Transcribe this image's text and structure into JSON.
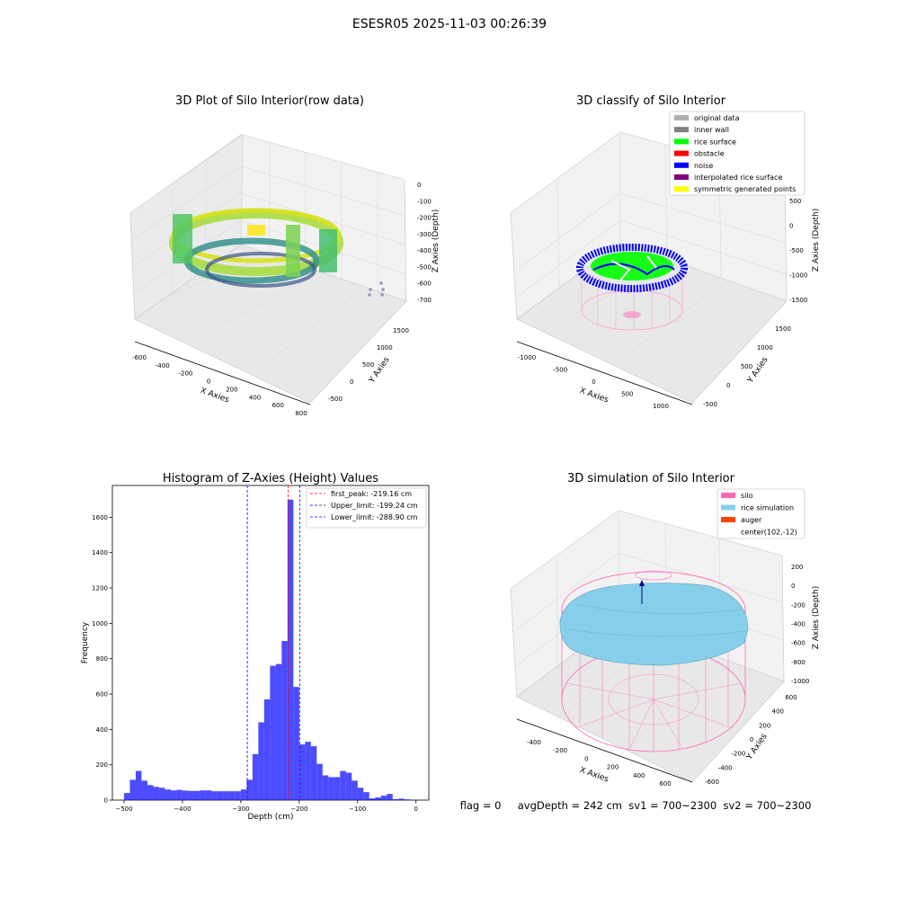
{
  "figure": {
    "title": "ESESR05 2025-11-03 00:26:39",
    "status_line": "flag = 0     avgDepth = 242 cm  sv1 = 700~2300  sv2 = 700~2300"
  },
  "colors": {
    "hist_bar": "#0000ff",
    "first_peak_line": "#ff0000",
    "limit_line": "#0000ff",
    "silo": "#ff69b4",
    "rice": "#87ceeb",
    "auger": "#ff4500",
    "rice_surface": "#00ff00",
    "noise": "#0000ff"
  },
  "chart_data": [
    {
      "type": "scatter",
      "projection": "3d",
      "title": "3D Plot of Silo Interior(row data)",
      "xlabel": "X Axies",
      "ylabel": "Y Axies",
      "zlabel": "Z Axies (Depth)",
      "xticks": [
        "-600",
        "-400",
        "-200",
        "0",
        "200",
        "400",
        "600",
        "800"
      ],
      "yticks": [
        "-500",
        "0",
        "500",
        "1000",
        "1500"
      ],
      "zticks": [
        "0",
        "-100",
        "-200",
        "-300",
        "-400",
        "-500",
        "-600",
        "-700"
      ],
      "xlim": [
        -600,
        800
      ],
      "ylim": [
        -500,
        1500
      ],
      "zlim": [
        -700,
        0
      ],
      "colormap": "viridis"
    },
    {
      "type": "scatter",
      "projection": "3d",
      "title": "3D classify of Silo Interior",
      "xlabel": "X Axies",
      "ylabel": "Y Axies",
      "zlabel": "Z Axies (Depth)",
      "xticks": [
        "-1000",
        "-500",
        "0",
        "500",
        "1000"
      ],
      "yticks": [
        "-500",
        "0",
        "500",
        "1000",
        "1500"
      ],
      "zticks": [
        "500",
        "0",
        "-500",
        "-1000",
        "-1500"
      ],
      "legend": [
        {
          "label": "original data",
          "color": "#b0b0b0"
        },
        {
          "label": "inner wall",
          "color": "#808080"
        },
        {
          "label": "rice surface",
          "color": "#00ff00"
        },
        {
          "label": "obstacle",
          "color": "#ff0000"
        },
        {
          "label": "noise",
          "color": "#0000ff"
        },
        {
          "label": "interpolated rice surface",
          "color": "#800080"
        },
        {
          "label": "symmetric generated points",
          "color": "#ffff00"
        }
      ],
      "legend_position": "top-right"
    },
    {
      "type": "bar",
      "title": "Histogram of Z-Axies (Height) Values",
      "xlabel": "Depth (cm)",
      "ylabel": "Frequency",
      "xlim": [
        -520,
        22
      ],
      "ylim": [
        0,
        1780
      ],
      "xticks": [
        -500,
        -400,
        -300,
        -200,
        -100,
        0
      ],
      "yticks": [
        0,
        200,
        400,
        600,
        800,
        1000,
        1200,
        1400,
        1600
      ],
      "bin_start": -500,
      "bin_width": 10,
      "values": [
        40,
        115,
        165,
        110,
        85,
        75,
        70,
        60,
        55,
        58,
        54,
        52,
        52,
        55,
        55,
        50,
        50,
        50,
        50,
        50,
        60,
        115,
        260,
        440,
        570,
        760,
        770,
        900,
        1700,
        640,
        315,
        330,
        305,
        205,
        140,
        130,
        130,
        165,
        155,
        110,
        70,
        45,
        10,
        15,
        25,
        35,
        5,
        8,
        4,
        2,
        0
      ],
      "vlines": [
        {
          "x": -219.16,
          "label": "first_peak: -219.16 cm",
          "color": "#ff0000"
        },
        {
          "x": -199.24,
          "label": "Upper_limit: -199.24 cm",
          "color": "#0000ff"
        },
        {
          "x": -288.9,
          "label": "Lower_limit: -288.90 cm",
          "color": "#0000ff"
        }
      ],
      "legend_position": "top-right"
    },
    {
      "type": "surface",
      "projection": "3d",
      "title": "3D simulation of Silo Interior",
      "xlabel": "X Axies",
      "ylabel": "Y Axies",
      "zlabel": "Z Axies (Depth)",
      "xticks": [
        "-400",
        "-200",
        "0",
        "200",
        "400",
        "600"
      ],
      "yticks": [
        "-600",
        "-400",
        "-200",
        "0",
        "200",
        "400",
        "600"
      ],
      "zticks": [
        "200",
        "0",
        "-200",
        "-400",
        "-600",
        "-800",
        "-1000"
      ],
      "legend": [
        {
          "label": "silo",
          "color": "#ff69b4"
        },
        {
          "label": "rice simulation",
          "color": "#87ceeb"
        },
        {
          "label": "auger",
          "color": "#ff4500"
        },
        {
          "label": "center(102,-12)",
          "color": ""
        }
      ],
      "legend_position": "top-right"
    }
  ]
}
